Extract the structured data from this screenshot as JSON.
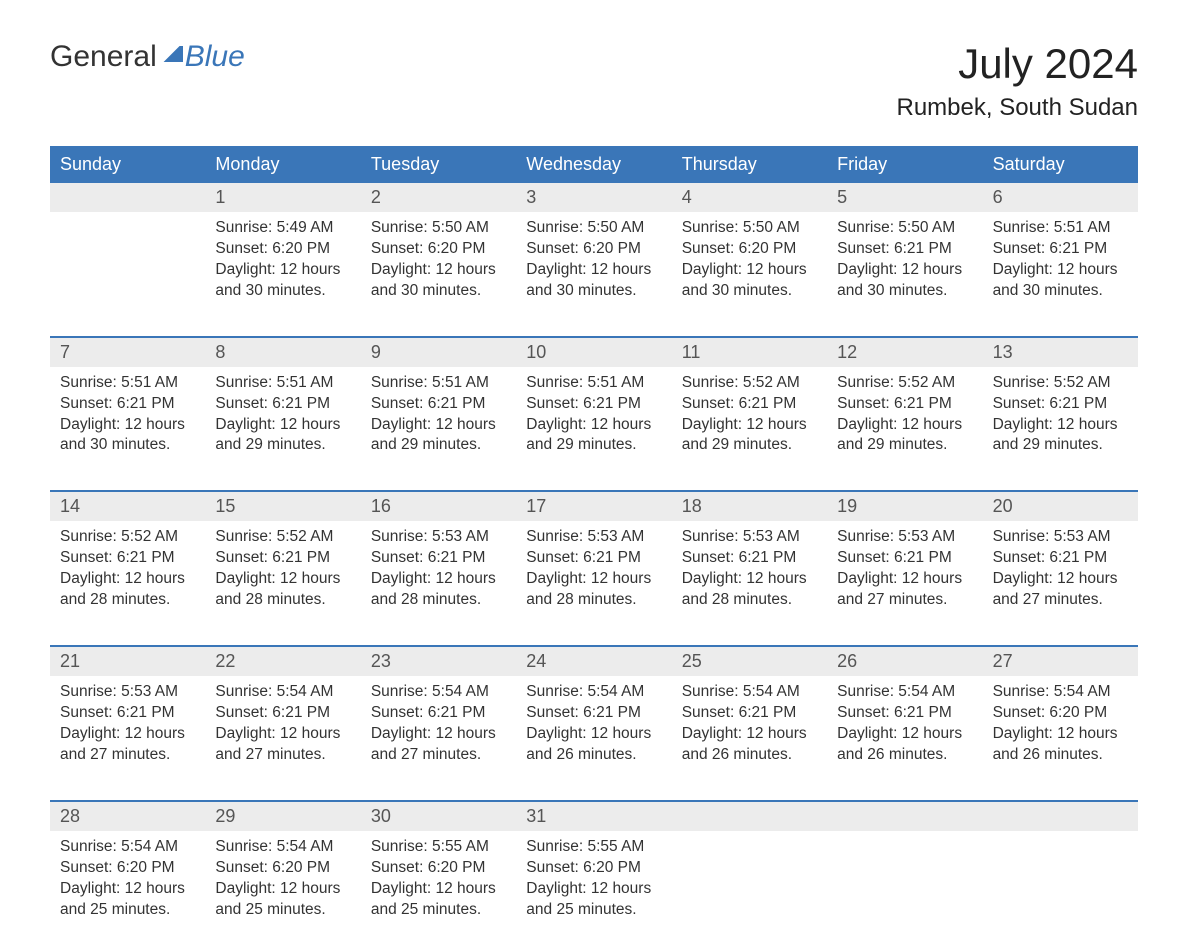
{
  "brand": {
    "part1": "General",
    "part2": "Blue"
  },
  "title": "July 2024",
  "location": "Rumbek, South Sudan",
  "colors": {
    "header_bg": "#3a76b8",
    "header_text": "#ffffff",
    "daynum_bg": "#ececec",
    "body_text": "#333333",
    "brand_blue": "#3a76b8",
    "page_bg": "#ffffff"
  },
  "typography": {
    "month_title_fontsize": 42,
    "location_fontsize": 24,
    "weekday_fontsize": 18,
    "daynum_fontsize": 18,
    "cell_fontsize": 15.5
  },
  "weekdays": [
    "Sunday",
    "Monday",
    "Tuesday",
    "Wednesday",
    "Thursday",
    "Friday",
    "Saturday"
  ],
  "weeks": [
    [
      null,
      {
        "n": "1",
        "sr": "Sunrise: 5:49 AM",
        "ss": "Sunset: 6:20 PM",
        "d1": "Daylight: 12 hours",
        "d2": "and 30 minutes."
      },
      {
        "n": "2",
        "sr": "Sunrise: 5:50 AM",
        "ss": "Sunset: 6:20 PM",
        "d1": "Daylight: 12 hours",
        "d2": "and 30 minutes."
      },
      {
        "n": "3",
        "sr": "Sunrise: 5:50 AM",
        "ss": "Sunset: 6:20 PM",
        "d1": "Daylight: 12 hours",
        "d2": "and 30 minutes."
      },
      {
        "n": "4",
        "sr": "Sunrise: 5:50 AM",
        "ss": "Sunset: 6:20 PM",
        "d1": "Daylight: 12 hours",
        "d2": "and 30 minutes."
      },
      {
        "n": "5",
        "sr": "Sunrise: 5:50 AM",
        "ss": "Sunset: 6:21 PM",
        "d1": "Daylight: 12 hours",
        "d2": "and 30 minutes."
      },
      {
        "n": "6",
        "sr": "Sunrise: 5:51 AM",
        "ss": "Sunset: 6:21 PM",
        "d1": "Daylight: 12 hours",
        "d2": "and 30 minutes."
      }
    ],
    [
      {
        "n": "7",
        "sr": "Sunrise: 5:51 AM",
        "ss": "Sunset: 6:21 PM",
        "d1": "Daylight: 12 hours",
        "d2": "and 30 minutes."
      },
      {
        "n": "8",
        "sr": "Sunrise: 5:51 AM",
        "ss": "Sunset: 6:21 PM",
        "d1": "Daylight: 12 hours",
        "d2": "and 29 minutes."
      },
      {
        "n": "9",
        "sr": "Sunrise: 5:51 AM",
        "ss": "Sunset: 6:21 PM",
        "d1": "Daylight: 12 hours",
        "d2": "and 29 minutes."
      },
      {
        "n": "10",
        "sr": "Sunrise: 5:51 AM",
        "ss": "Sunset: 6:21 PM",
        "d1": "Daylight: 12 hours",
        "d2": "and 29 minutes."
      },
      {
        "n": "11",
        "sr": "Sunrise: 5:52 AM",
        "ss": "Sunset: 6:21 PM",
        "d1": "Daylight: 12 hours",
        "d2": "and 29 minutes."
      },
      {
        "n": "12",
        "sr": "Sunrise: 5:52 AM",
        "ss": "Sunset: 6:21 PM",
        "d1": "Daylight: 12 hours",
        "d2": "and 29 minutes."
      },
      {
        "n": "13",
        "sr": "Sunrise: 5:52 AM",
        "ss": "Sunset: 6:21 PM",
        "d1": "Daylight: 12 hours",
        "d2": "and 29 minutes."
      }
    ],
    [
      {
        "n": "14",
        "sr": "Sunrise: 5:52 AM",
        "ss": "Sunset: 6:21 PM",
        "d1": "Daylight: 12 hours",
        "d2": "and 28 minutes."
      },
      {
        "n": "15",
        "sr": "Sunrise: 5:52 AM",
        "ss": "Sunset: 6:21 PM",
        "d1": "Daylight: 12 hours",
        "d2": "and 28 minutes."
      },
      {
        "n": "16",
        "sr": "Sunrise: 5:53 AM",
        "ss": "Sunset: 6:21 PM",
        "d1": "Daylight: 12 hours",
        "d2": "and 28 minutes."
      },
      {
        "n": "17",
        "sr": "Sunrise: 5:53 AM",
        "ss": "Sunset: 6:21 PM",
        "d1": "Daylight: 12 hours",
        "d2": "and 28 minutes."
      },
      {
        "n": "18",
        "sr": "Sunrise: 5:53 AM",
        "ss": "Sunset: 6:21 PM",
        "d1": "Daylight: 12 hours",
        "d2": "and 28 minutes."
      },
      {
        "n": "19",
        "sr": "Sunrise: 5:53 AM",
        "ss": "Sunset: 6:21 PM",
        "d1": "Daylight: 12 hours",
        "d2": "and 27 minutes."
      },
      {
        "n": "20",
        "sr": "Sunrise: 5:53 AM",
        "ss": "Sunset: 6:21 PM",
        "d1": "Daylight: 12 hours",
        "d2": "and 27 minutes."
      }
    ],
    [
      {
        "n": "21",
        "sr": "Sunrise: 5:53 AM",
        "ss": "Sunset: 6:21 PM",
        "d1": "Daylight: 12 hours",
        "d2": "and 27 minutes."
      },
      {
        "n": "22",
        "sr": "Sunrise: 5:54 AM",
        "ss": "Sunset: 6:21 PM",
        "d1": "Daylight: 12 hours",
        "d2": "and 27 minutes."
      },
      {
        "n": "23",
        "sr": "Sunrise: 5:54 AM",
        "ss": "Sunset: 6:21 PM",
        "d1": "Daylight: 12 hours",
        "d2": "and 27 minutes."
      },
      {
        "n": "24",
        "sr": "Sunrise: 5:54 AM",
        "ss": "Sunset: 6:21 PM",
        "d1": "Daylight: 12 hours",
        "d2": "and 26 minutes."
      },
      {
        "n": "25",
        "sr": "Sunrise: 5:54 AM",
        "ss": "Sunset: 6:21 PM",
        "d1": "Daylight: 12 hours",
        "d2": "and 26 minutes."
      },
      {
        "n": "26",
        "sr": "Sunrise: 5:54 AM",
        "ss": "Sunset: 6:21 PM",
        "d1": "Daylight: 12 hours",
        "d2": "and 26 minutes."
      },
      {
        "n": "27",
        "sr": "Sunrise: 5:54 AM",
        "ss": "Sunset: 6:20 PM",
        "d1": "Daylight: 12 hours",
        "d2": "and 26 minutes."
      }
    ],
    [
      {
        "n": "28",
        "sr": "Sunrise: 5:54 AM",
        "ss": "Sunset: 6:20 PM",
        "d1": "Daylight: 12 hours",
        "d2": "and 25 minutes."
      },
      {
        "n": "29",
        "sr": "Sunrise: 5:54 AM",
        "ss": "Sunset: 6:20 PM",
        "d1": "Daylight: 12 hours",
        "d2": "and 25 minutes."
      },
      {
        "n": "30",
        "sr": "Sunrise: 5:55 AM",
        "ss": "Sunset: 6:20 PM",
        "d1": "Daylight: 12 hours",
        "d2": "and 25 minutes."
      },
      {
        "n": "31",
        "sr": "Sunrise: 5:55 AM",
        "ss": "Sunset: 6:20 PM",
        "d1": "Daylight: 12 hours",
        "d2": "and 25 minutes."
      },
      null,
      null,
      null
    ]
  ]
}
